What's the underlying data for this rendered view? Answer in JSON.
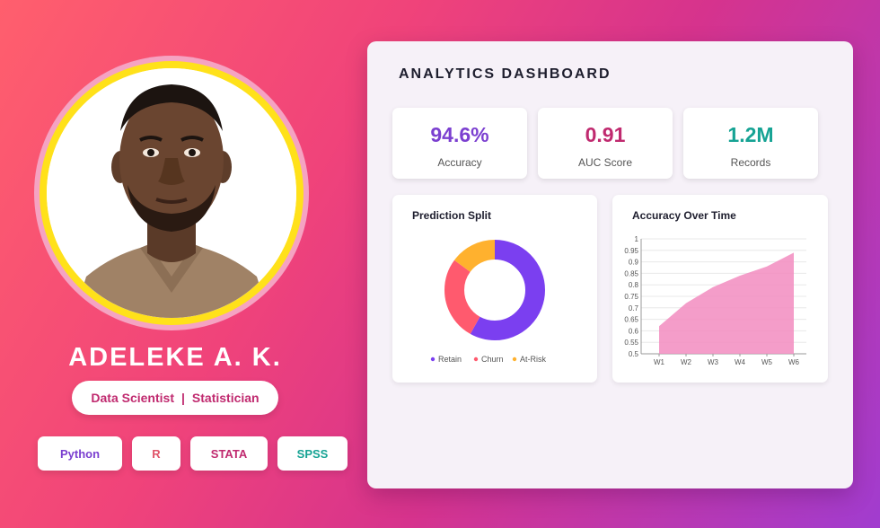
{
  "profile": {
    "name": "ADELEKE A. K.",
    "role_left": "Data Scientist",
    "role_sep": "|",
    "role_right": "Statistician",
    "skills": [
      {
        "label": "Python",
        "color": "#7b3fd0"
      },
      {
        "label": "R",
        "color": "#e0556a"
      },
      {
        "label": "STATA",
        "color": "#c02a6f"
      },
      {
        "label": "SPSS",
        "color": "#16a394"
      }
    ],
    "ring_color": "#ffe11a"
  },
  "dashboard": {
    "title": "ANALYTICS DASHBOARD",
    "kpis": [
      {
        "value": "94.6%",
        "label": "Accuracy",
        "color": "#7b3fd0"
      },
      {
        "value": "0.91",
        "label": "AUC Score",
        "color": "#c02a6f"
      },
      {
        "value": "1.2M",
        "label": "Records",
        "color": "#16a394"
      }
    ]
  },
  "chart_data": [
    {
      "type": "pie",
      "title": "Prediction Split",
      "categories": [
        "Retain",
        "Churn",
        "At-Risk"
      ],
      "values": [
        58,
        27,
        15
      ],
      "colors": [
        "#7b3ff0",
        "#ff5a6e",
        "#ffb12e"
      ],
      "legend": "bottom"
    },
    {
      "type": "area",
      "title": "Accuracy Over Time",
      "categories": [
        "W1",
        "W2",
        "W3",
        "W4",
        "W5",
        "W6"
      ],
      "values": [
        0.62,
        0.72,
        0.79,
        0.84,
        0.88,
        0.94
      ],
      "ylim": [
        0.5,
        1
      ],
      "yticks": [
        "0.5",
        "0.55",
        "0.6",
        "0.65",
        "0.7",
        "0.75",
        "0.8",
        "0.85",
        "0.9",
        "0.95",
        "1"
      ],
      "color": "#f28cbf",
      "grid": true,
      "legend": "none"
    }
  ]
}
